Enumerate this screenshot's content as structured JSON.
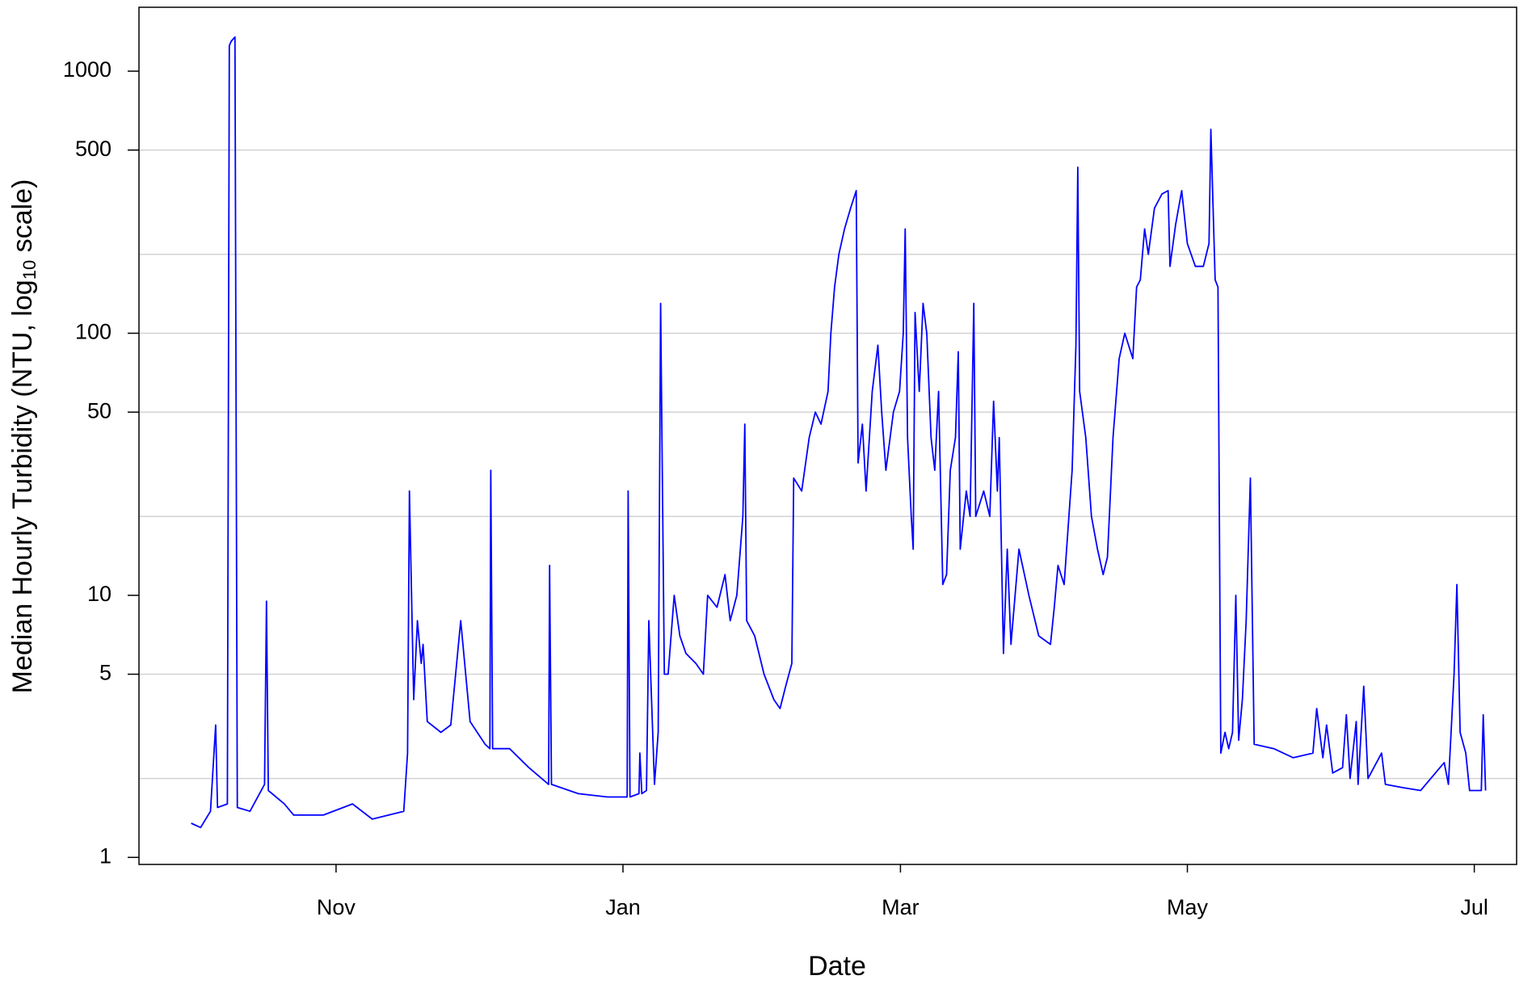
{
  "chart_data": {
    "type": "line",
    "x_label": "Date",
    "y_label": [
      "Median Hourly Turbidity (NTU,  log",
      "10",
      " scale)"
    ],
    "color": "#0000ff",
    "log_y": true,
    "grid": [
      2,
      5,
      20,
      50,
      100,
      200,
      500
    ],
    "xlim": [
      -41.9,
      251.0
    ],
    "ylim": [
      0.94,
      1753
    ],
    "xticks": [
      {
        "value": 0,
        "label": "Nov"
      },
      {
        "value": 61,
        "label": "Jan"
      },
      {
        "value": 120,
        "label": "Mar"
      },
      {
        "value": 181,
        "label": "May"
      },
      {
        "value": 242,
        "label": "Jul"
      }
    ],
    "yticks": [
      1,
      5,
      10,
      50,
      100,
      500,
      1000
    ],
    "x": [
      -30.8,
      -28.8,
      -26.7,
      -25.6,
      -25.2,
      -23.1,
      -22.7,
      -22.3,
      -21.5,
      -21.0,
      -18.3,
      -15.2,
      -14.8,
      -14.4,
      -11.0,
      -9.0,
      -2.7,
      3.5,
      7.7,
      14.4,
      15.2,
      15.6,
      16.5,
      17.3,
      18.1,
      18.5,
      19.4,
      22.3,
      24.4,
      26.5,
      28.5,
      31.7,
      32.7,
      32.9,
      33.3,
      36.9,
      41.0,
      45.2,
      45.4,
      45.8,
      51.5,
      57.7,
      61.9,
      62.1,
      62.5,
      64.4,
      64.6,
      65.0,
      66.0,
      66.5,
      67.7,
      68.5,
      69.0,
      69.8,
      70.6,
      71.9,
      73.1,
      74.4,
      76.5,
      78.1,
      79.0,
      81.0,
      82.7,
      83.8,
      85.2,
      86.5,
      86.9,
      87.3,
      89.0,
      91.0,
      93.1,
      94.4,
      95.6,
      96.9,
      97.3,
      99.0,
      100.6,
      101.9,
      103.1,
      104.6,
      105.2,
      106.0,
      106.9,
      108.1,
      109.4,
      110.6,
      111.0,
      111.9,
      112.7,
      114.0,
      115.2,
      116.0,
      116.9,
      118.5,
      119.8,
      120.6,
      121.0,
      121.5,
      122.3,
      122.7,
      123.1,
      124.0,
      124.8,
      125.6,
      126.5,
      127.3,
      128.1,
      129.0,
      129.8,
      130.6,
      131.7,
      132.3,
      132.7,
      134.0,
      134.8,
      135.6,
      136.0,
      137.7,
      139.0,
      139.8,
      140.6,
      141.0,
      141.9,
      142.7,
      143.5,
      145.2,
      147.3,
      149.4,
      151.9,
      152.7,
      153.5,
      154.8,
      156.5,
      157.3,
      157.7,
      158.1,
      159.4,
      160.6,
      161.9,
      163.1,
      164.0,
      165.2,
      166.5,
      167.7,
      169.4,
      170.2,
      171.0,
      171.9,
      172.7,
      174.0,
      175.6,
      176.9,
      177.3,
      178.5,
      179.8,
      181.0,
      182.7,
      184.4,
      185.6,
      186.0,
      186.9,
      187.5,
      188.1,
      189.0,
      189.8,
      190.6,
      191.3,
      191.9,
      192.7,
      193.5,
      194.4,
      195.2,
      199.4,
      203.5,
      207.7,
      208.5,
      209.8,
      210.6,
      211.9,
      214.0,
      214.8,
      215.6,
      216.9,
      217.3,
      218.5,
      219.4,
      222.3,
      223.1,
      226.5,
      230.6,
      235.6,
      236.5,
      237.7,
      238.3,
      239.0,
      240.2,
      241.0,
      243.5,
      243.9,
      244.4
    ],
    "values": [
      1.35,
      1.3,
      1.5,
      3.2,
      1.55,
      1.6,
      1250,
      1300,
      1350,
      1.55,
      1.5,
      1.9,
      9.5,
      1.8,
      1.6,
      1.45,
      1.45,
      1.6,
      1.4,
      1.5,
      2.5,
      25,
      4,
      8,
      5.5,
      6.5,
      3.3,
      3,
      3.2,
      8,
      3.3,
      2.7,
      2.6,
      30,
      2.6,
      2.6,
      2.2,
      1.9,
      13,
      1.9,
      1.75,
      1.7,
      1.7,
      25,
      1.7,
      1.75,
      2.5,
      1.75,
      1.8,
      8,
      1.9,
      3,
      130,
      5,
      5,
      10,
      7,
      6,
      5.5,
      5,
      10,
      9,
      12,
      8,
      10,
      20,
      45,
      8,
      7,
      5,
      4,
      3.7,
      4.5,
      5.5,
      28,
      25,
      40,
      50,
      45,
      60,
      100,
      150,
      200,
      250,
      300,
      350,
      32,
      45,
      25,
      60,
      90,
      50,
      30,
      50,
      60,
      100,
      250,
      40,
      20,
      15,
      120,
      60,
      130,
      100,
      40,
      30,
      60,
      11,
      12,
      30,
      40,
      85,
      15,
      25,
      20,
      130,
      20,
      25,
      20,
      55,
      25,
      40,
      6,
      15,
      6.5,
      15,
      10,
      7,
      6.5,
      9,
      13,
      11,
      30,
      90,
      430,
      60,
      40,
      20,
      15,
      12,
      14,
      40,
      80,
      100,
      80,
      150,
      160,
      250,
      200,
      300,
      340,
      350,
      180,
      260,
      350,
      220,
      180,
      180,
      220,
      600,
      160,
      150,
      2.5,
      3,
      2.6,
      3,
      10,
      2.8,
      4,
      8,
      28,
      2.7,
      2.6,
      2.4,
      2.5,
      3.7,
      2.4,
      3.2,
      2.1,
      2.2,
      3.5,
      2,
      3.3,
      1.9,
      4.5,
      2,
      2.5,
      1.9,
      1.85,
      1.8,
      2.3,
      1.9,
      5,
      11,
      3,
      2.5,
      1.8,
      1.8,
      3.5,
      1.8
    ]
  }
}
